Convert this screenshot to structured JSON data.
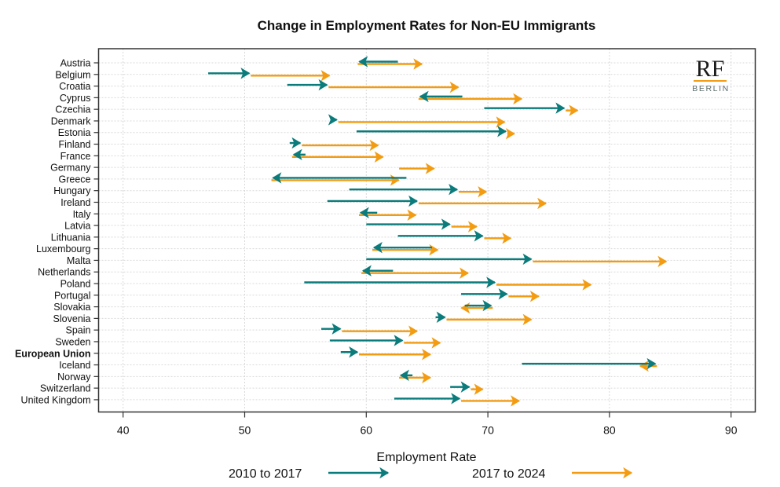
{
  "chart_data": {
    "type": "arrow",
    "title": "Change in Employment Rates for Non-EU Immigrants",
    "xlabel": "Employment Rate",
    "ylabel": "",
    "xlim": [
      38.5,
      92
    ],
    "xticks": [
      40,
      50,
      60,
      70,
      80,
      90
    ],
    "grid": true,
    "legend_position": "bottom",
    "logo": {
      "main": "RF",
      "sub": "BERLIN"
    },
    "colors": {
      "period1": "#0b7b7b",
      "period2": "#f39c12",
      "frame": "#333333",
      "grid": "#d9d9d9"
    },
    "series": [
      {
        "name": "2010 to 2017",
        "color_key": "period1"
      },
      {
        "name": "2017 to 2024",
        "color_key": "period2"
      }
    ],
    "categories": [
      "Austria",
      "Belgium",
      "Croatia",
      "Cyprus",
      "Czechia",
      "Denmark",
      "Estonia",
      "Finland",
      "France",
      "Germany",
      "Greece",
      "Hungary",
      "Ireland",
      "Italy",
      "Latvia",
      "Lithuania",
      "Luxembourg",
      "Malta",
      "Netherlands",
      "Poland",
      "Portugal",
      "Slovakia",
      "Slovenia",
      "Spain",
      "Sweden",
      "European Union",
      "Iceland",
      "Norway",
      "Switzerland",
      "United Kingdom"
    ],
    "bold_categories": [
      "European Union"
    ],
    "values": [
      {
        "country": "Austria",
        "y2010": 62.6,
        "y2017": 59.3,
        "y2024": 64.7
      },
      {
        "country": "Belgium",
        "y2010": 47.0,
        "y2017": 50.5,
        "y2024": 57.1
      },
      {
        "country": "Croatia",
        "y2010": 53.5,
        "y2017": 56.9,
        "y2024": 67.7
      },
      {
        "country": "Cyprus",
        "y2010": 67.9,
        "y2017": 64.3,
        "y2024": 72.9
      },
      {
        "country": "Czechia",
        "y2010": 69.7,
        "y2017": 76.4,
        "y2024": 77.5
      },
      {
        "country": "Denmark",
        "y2010": 57.4,
        "y2017": 57.7,
        "y2024": 71.5
      },
      {
        "country": "Estonia",
        "y2010": 59.2,
        "y2017": 71.6,
        "y2024": 72.3
      },
      {
        "country": "Finland",
        "y2010": 53.7,
        "y2017": 54.7,
        "y2024": 61.1
      },
      {
        "country": "France",
        "y2010": 55.0,
        "y2017": 53.9,
        "y2024": 61.5
      },
      {
        "country": "Germany",
        "y2010": null,
        "y2017": 62.7,
        "y2024": 65.7
      },
      {
        "country": "Greece",
        "y2010": 63.3,
        "y2017": 52.2,
        "y2024": 62.8
      },
      {
        "country": "Hungary",
        "y2010": 58.6,
        "y2017": 67.6,
        "y2024": 70.0
      },
      {
        "country": "Ireland",
        "y2010": 56.8,
        "y2017": 64.3,
        "y2024": 74.9
      },
      {
        "country": "Italy",
        "y2010": 60.9,
        "y2017": 59.4,
        "y2024": 64.2
      },
      {
        "country": "Latvia",
        "y2010": 60.0,
        "y2017": 67.0,
        "y2024": 69.2
      },
      {
        "country": "Lithuania",
        "y2010": 62.6,
        "y2017": 69.7,
        "y2024": 72.0
      },
      {
        "country": "Luxembourg",
        "y2010": 65.4,
        "y2017": 60.5,
        "y2024": 66.0
      },
      {
        "country": "Malta",
        "y2010": 60.0,
        "y2017": 73.7,
        "y2024": 84.8
      },
      {
        "country": "Netherlands",
        "y2010": 62.2,
        "y2017": 59.6,
        "y2024": 68.5
      },
      {
        "country": "Poland",
        "y2010": 54.9,
        "y2017": 70.7,
        "y2024": 78.6
      },
      {
        "country": "Portugal",
        "y2010": 67.8,
        "y2017": 71.7,
        "y2024": 74.3
      },
      {
        "country": "Slovakia",
        "y2010": 68.1,
        "y2017": 70.4,
        "y2024": 67.7
      },
      {
        "country": "Slovenia",
        "y2010": 65.7,
        "y2017": 66.6,
        "y2024": 73.7
      },
      {
        "country": "Spain",
        "y2010": 56.3,
        "y2017": 58.0,
        "y2024": 64.3
      },
      {
        "country": "Sweden",
        "y2010": 57.0,
        "y2017": 63.1,
        "y2024": 66.2
      },
      {
        "country": "European Union",
        "y2010": 57.9,
        "y2017": 59.4,
        "y2024": 65.4
      },
      {
        "country": "Iceland",
        "y2010": 72.8,
        "y2017": 83.9,
        "y2024": 82.4
      },
      {
        "country": "Norway",
        "y2010": 63.8,
        "y2017": 62.7,
        "y2024": 65.4
      },
      {
        "country": "Switzerland",
        "y2010": 66.9,
        "y2017": 68.6,
        "y2024": 69.7
      },
      {
        "country": "United Kingdom",
        "y2010": 62.3,
        "y2017": 67.8,
        "y2024": 72.7
      }
    ]
  }
}
